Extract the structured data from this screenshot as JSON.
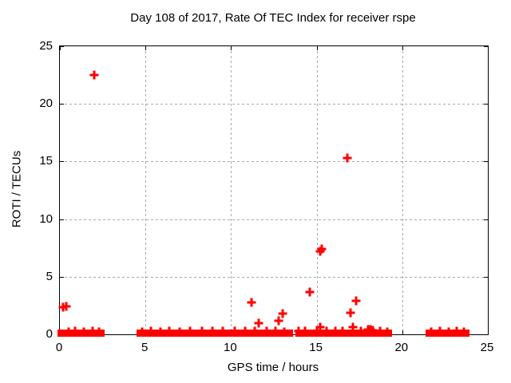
{
  "chart_data": {
    "type": "scatter",
    "title": "Day 108 of 2017, Rate Of TEC Index for receiver rspe",
    "xlabel": "GPS time / hours",
    "ylabel": "ROTI / TECUs",
    "xlim": [
      0,
      25
    ],
    "ylim": [
      0,
      25
    ],
    "xticks": [
      0,
      5,
      10,
      15,
      20,
      25
    ],
    "yticks": [
      0,
      5,
      10,
      15,
      20,
      25
    ],
    "grid": true,
    "legend": "none",
    "marker": "plus",
    "marker_color": "#ff0000",
    "grid_color": "#a8a8a8",
    "baseline_value": 0,
    "baseline_segments": [
      [
        0.0,
        2.45
      ],
      [
        4.6,
        6.65
      ],
      [
        6.8,
        13.5
      ],
      [
        13.9,
        19.25
      ],
      [
        21.5,
        23.8
      ]
    ],
    "outlier_points": [
      [
        0.2,
        2.35
      ],
      [
        0.35,
        2.45
      ],
      [
        2.0,
        22.5
      ],
      [
        11.2,
        2.8
      ],
      [
        11.6,
        1.0
      ],
      [
        12.8,
        1.2
      ],
      [
        13.0,
        1.8
      ],
      [
        14.6,
        3.7
      ],
      [
        15.2,
        0.6
      ],
      [
        15.2,
        7.2
      ],
      [
        15.3,
        7.4
      ],
      [
        16.8,
        15.3
      ],
      [
        17.0,
        1.9
      ],
      [
        17.1,
        0.6
      ],
      [
        17.3,
        2.9
      ]
    ],
    "baseline_noise_points": [
      [
        0.5,
        0.2
      ],
      [
        0.9,
        0.25
      ],
      [
        1.4,
        0.2
      ],
      [
        1.9,
        0.25
      ],
      [
        2.3,
        0.2
      ],
      [
        4.8,
        0.2
      ],
      [
        5.3,
        0.25
      ],
      [
        5.9,
        0.2
      ],
      [
        6.4,
        0.25
      ],
      [
        7.0,
        0.2
      ],
      [
        7.6,
        0.25
      ],
      [
        8.3,
        0.3
      ],
      [
        8.9,
        0.25
      ],
      [
        9.5,
        0.3
      ],
      [
        10.2,
        0.25
      ],
      [
        10.8,
        0.3
      ],
      [
        11.4,
        0.25
      ],
      [
        12.1,
        0.3
      ],
      [
        12.6,
        0.25
      ],
      [
        13.1,
        0.2
      ],
      [
        13.95,
        0.25
      ],
      [
        14.3,
        0.3
      ],
      [
        15.0,
        0.2
      ],
      [
        15.6,
        0.25
      ],
      [
        16.1,
        0.3
      ],
      [
        16.5,
        0.25
      ],
      [
        17.6,
        0.3
      ],
      [
        18.0,
        0.4
      ],
      [
        18.15,
        0.45
      ],
      [
        18.3,
        0.35
      ],
      [
        18.7,
        0.25
      ],
      [
        19.1,
        0.2
      ],
      [
        21.7,
        0.2
      ],
      [
        22.2,
        0.25
      ],
      [
        22.7,
        0.2
      ],
      [
        23.2,
        0.25
      ],
      [
        23.6,
        0.2
      ]
    ]
  }
}
